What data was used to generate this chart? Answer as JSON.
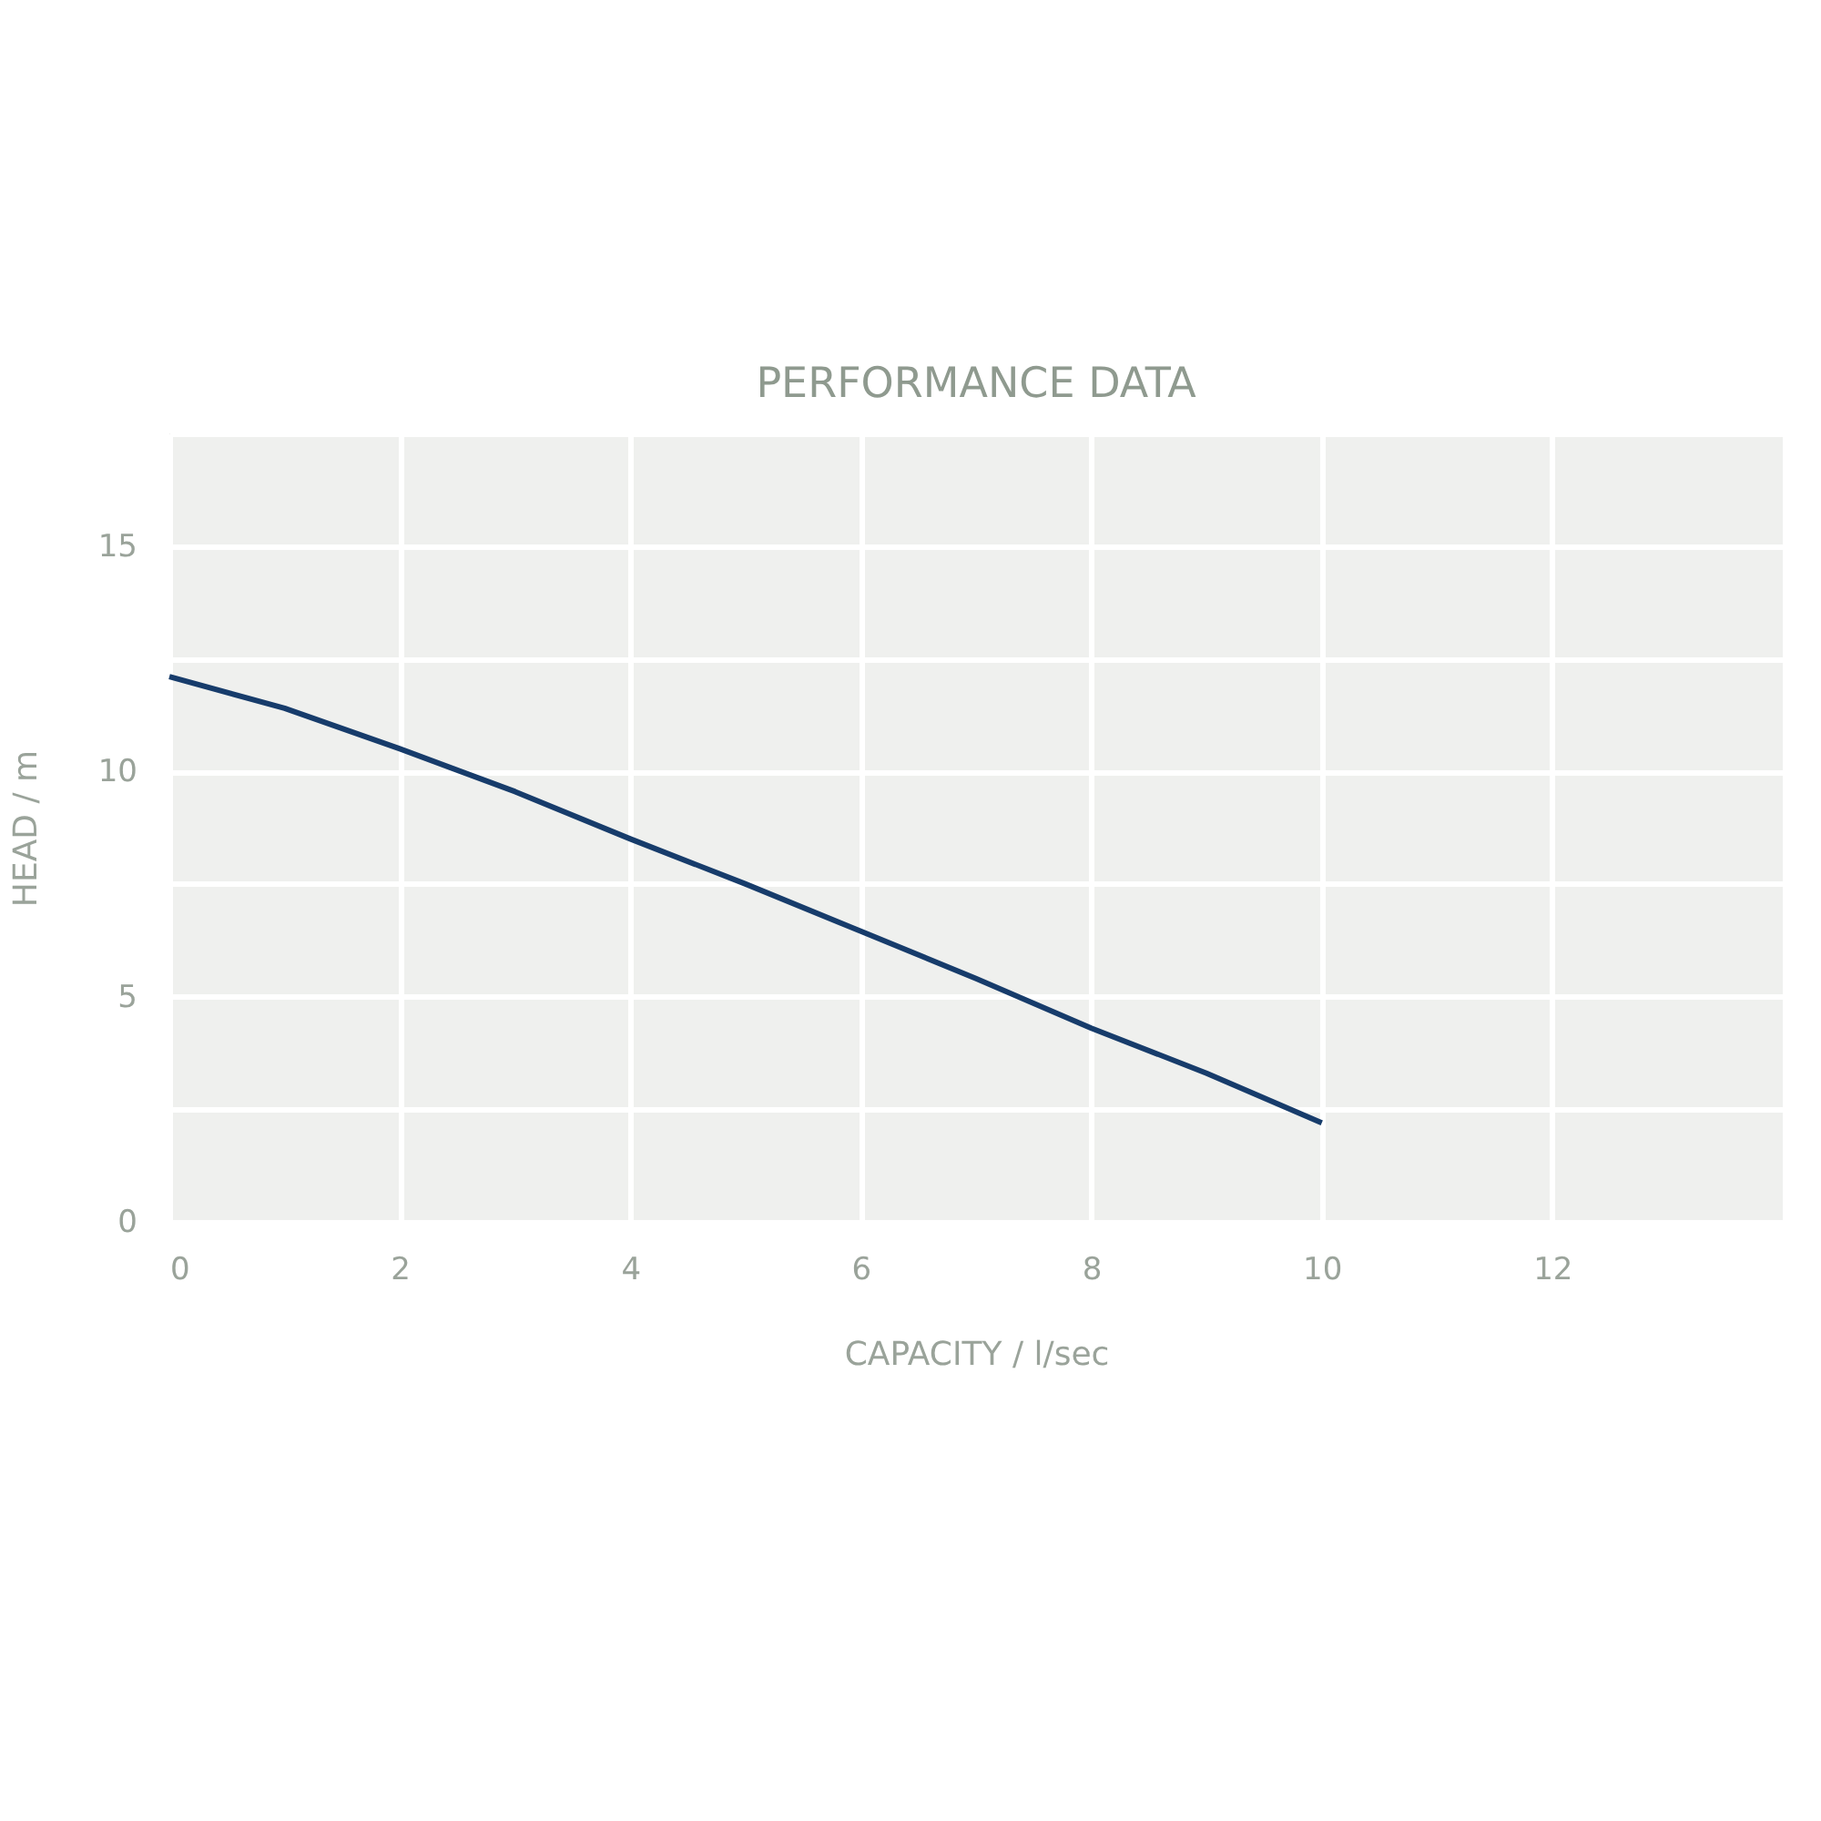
{
  "chart_data": {
    "type": "line",
    "title": "PERFORMANCE DATA",
    "xlabel": "CAPACITY / l/sec",
    "ylabel": "HEAD / m",
    "x": [
      0,
      1,
      2,
      3,
      4,
      5,
      6,
      7,
      8,
      9,
      10
    ],
    "series": [
      {
        "color": "#173c6b",
        "values": [
          12.1,
          11.4,
          10.5,
          9.55,
          8.5,
          7.5,
          6.45,
          5.4,
          4.3,
          3.3,
          2.2
        ]
      }
    ],
    "xlim": [
      0,
      14
    ],
    "xticks": [
      0,
      2,
      4,
      6,
      8,
      10,
      12
    ],
    "ylim": [
      0,
      17.5
    ],
    "yticks": [
      0,
      {
        "value": 2.5,
        "label": null
      },
      5,
      {
        "value": 7.5,
        "label": null
      },
      10,
      {
        "value": 12.5,
        "label": null
      },
      15,
      {
        "value": 17.5,
        "label": null
      }
    ],
    "grid": true,
    "marker": "none",
    "line_style": "solid"
  }
}
